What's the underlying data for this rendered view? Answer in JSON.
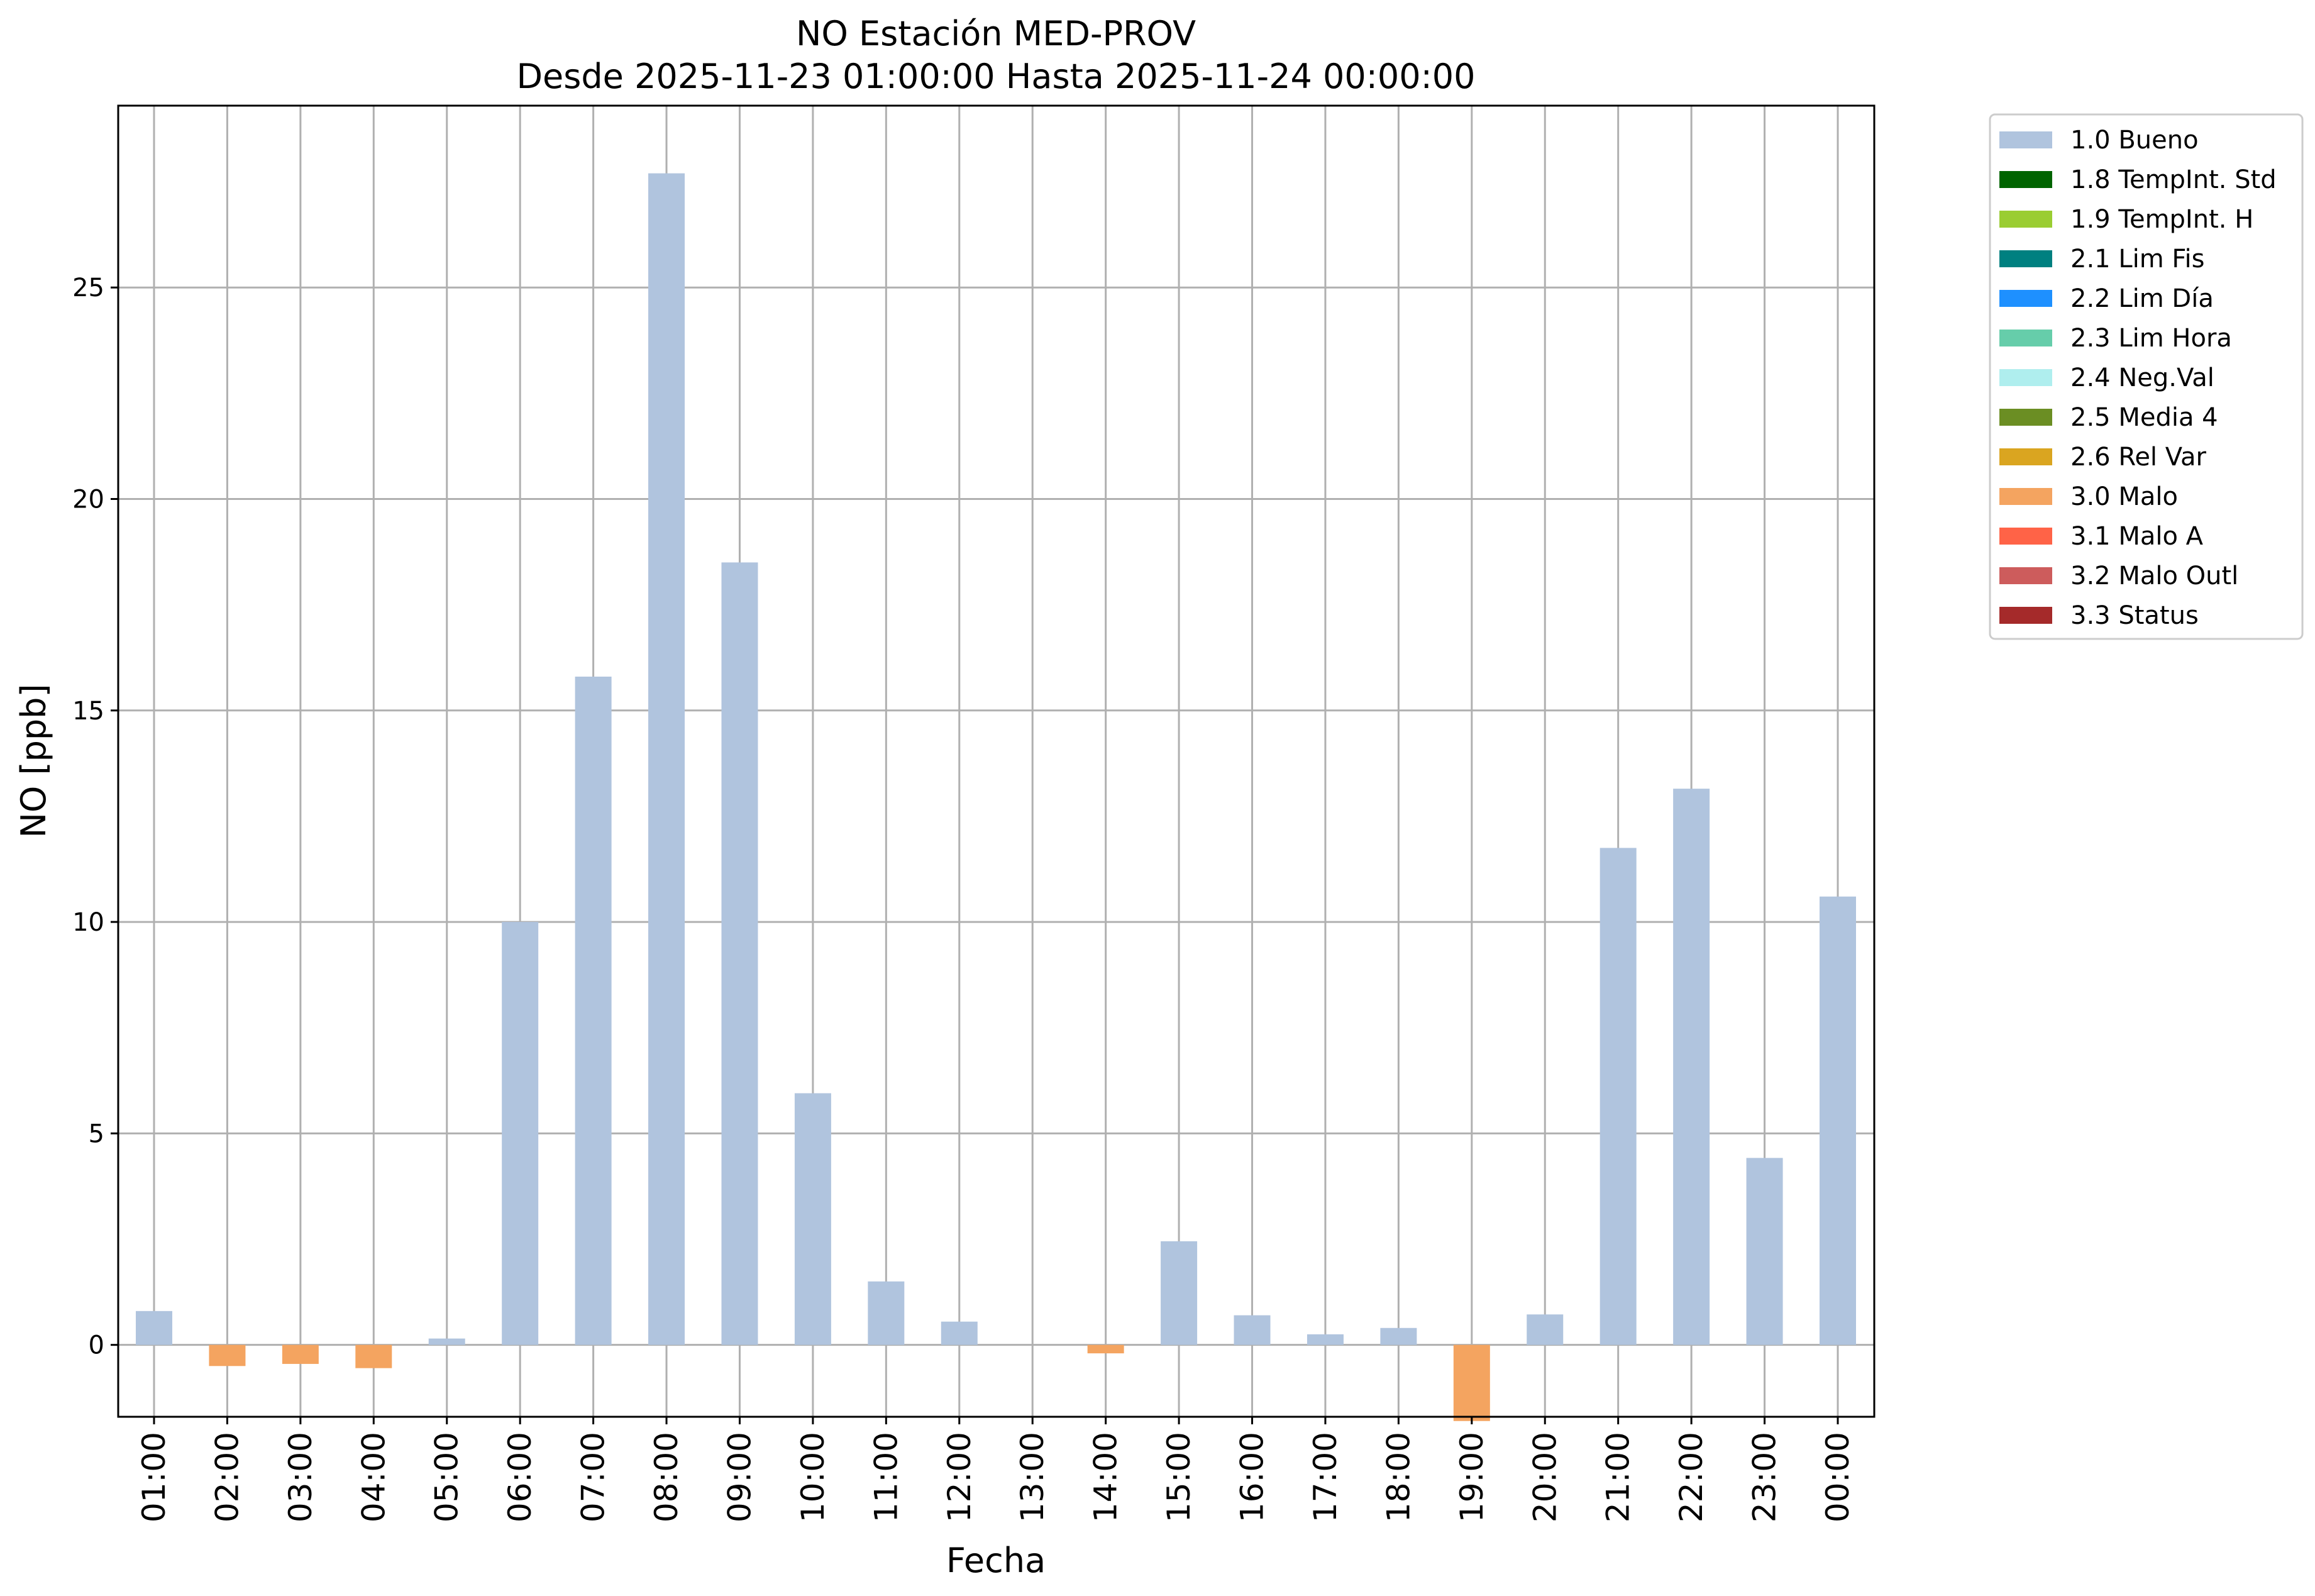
{
  "chart_data": {
    "type": "bar",
    "title": "NO Estación MED-PROV",
    "subtitle": "Desde 2025-11-23 01:00:00 Hasta 2025-11-24 00:00:00",
    "xlabel": "Fecha",
    "ylabel": "NO [ppb]",
    "ylim": [
      -1.7,
      29.3
    ],
    "yticks": [
      0,
      5,
      10,
      15,
      20,
      25
    ],
    "grid": true,
    "legend_position": "outside-top-right",
    "categories": [
      "01:00",
      "02:00",
      "03:00",
      "04:00",
      "05:00",
      "06:00",
      "07:00",
      "08:00",
      "09:00",
      "10:00",
      "11:00",
      "12:00",
      "13:00",
      "14:00",
      "15:00",
      "16:00",
      "17:00",
      "18:00",
      "19:00",
      "20:00",
      "21:00",
      "22:00",
      "23:00",
      "00:00"
    ],
    "values": [
      0.8,
      -0.5,
      -0.45,
      -0.55,
      0.15,
      10.0,
      15.8,
      27.7,
      18.5,
      5.95,
      1.5,
      0.55,
      null,
      -0.2,
      2.45,
      0.7,
      0.25,
      0.4,
      -1.8,
      0.72,
      11.75,
      13.15,
      4.42,
      10.6
    ],
    "flags": [
      "1.0 Bueno",
      "3.0 Malo",
      "3.0 Malo",
      "3.0 Malo",
      "1.0 Bueno",
      "1.0 Bueno",
      "1.0 Bueno",
      "1.0 Bueno",
      "1.0 Bueno",
      "1.0 Bueno",
      "1.0 Bueno",
      "1.0 Bueno",
      null,
      "3.0 Malo",
      "1.0 Bueno",
      "1.0 Bueno",
      "1.0 Bueno",
      "1.0 Bueno",
      "3.0 Malo",
      "1.0 Bueno",
      "1.0 Bueno",
      "1.0 Bueno",
      "1.0 Bueno",
      "1.0 Bueno"
    ],
    "legend": [
      {
        "label": "1.0 Bueno",
        "color": "#b0c4de"
      },
      {
        "label": "1.8 TempInt. Std",
        "color": "#006400"
      },
      {
        "label": "1.9 TempInt. H",
        "color": "#9acd32"
      },
      {
        "label": "2.1 Lim Fis",
        "color": "#008080"
      },
      {
        "label": "2.2 Lim Día",
        "color": "#1e90ff"
      },
      {
        "label": "2.3 Lim Hora",
        "color": "#66cdaa"
      },
      {
        "label": "2.4 Neg.Val",
        "color": "#afeeee"
      },
      {
        "label": "2.5 Media 4",
        "color": "#6b8e23"
      },
      {
        "label": "2.6 Rel Var",
        "color": "#daa520"
      },
      {
        "label": "3.0 Malo",
        "color": "#f4a460"
      },
      {
        "label": "3.1 Malo A",
        "color": "#ff6347"
      },
      {
        "label": "3.2 Malo Outl",
        "color": "#cd5c5c"
      },
      {
        "label": "3.3 Status",
        "color": "#a52a2a"
      }
    ]
  }
}
